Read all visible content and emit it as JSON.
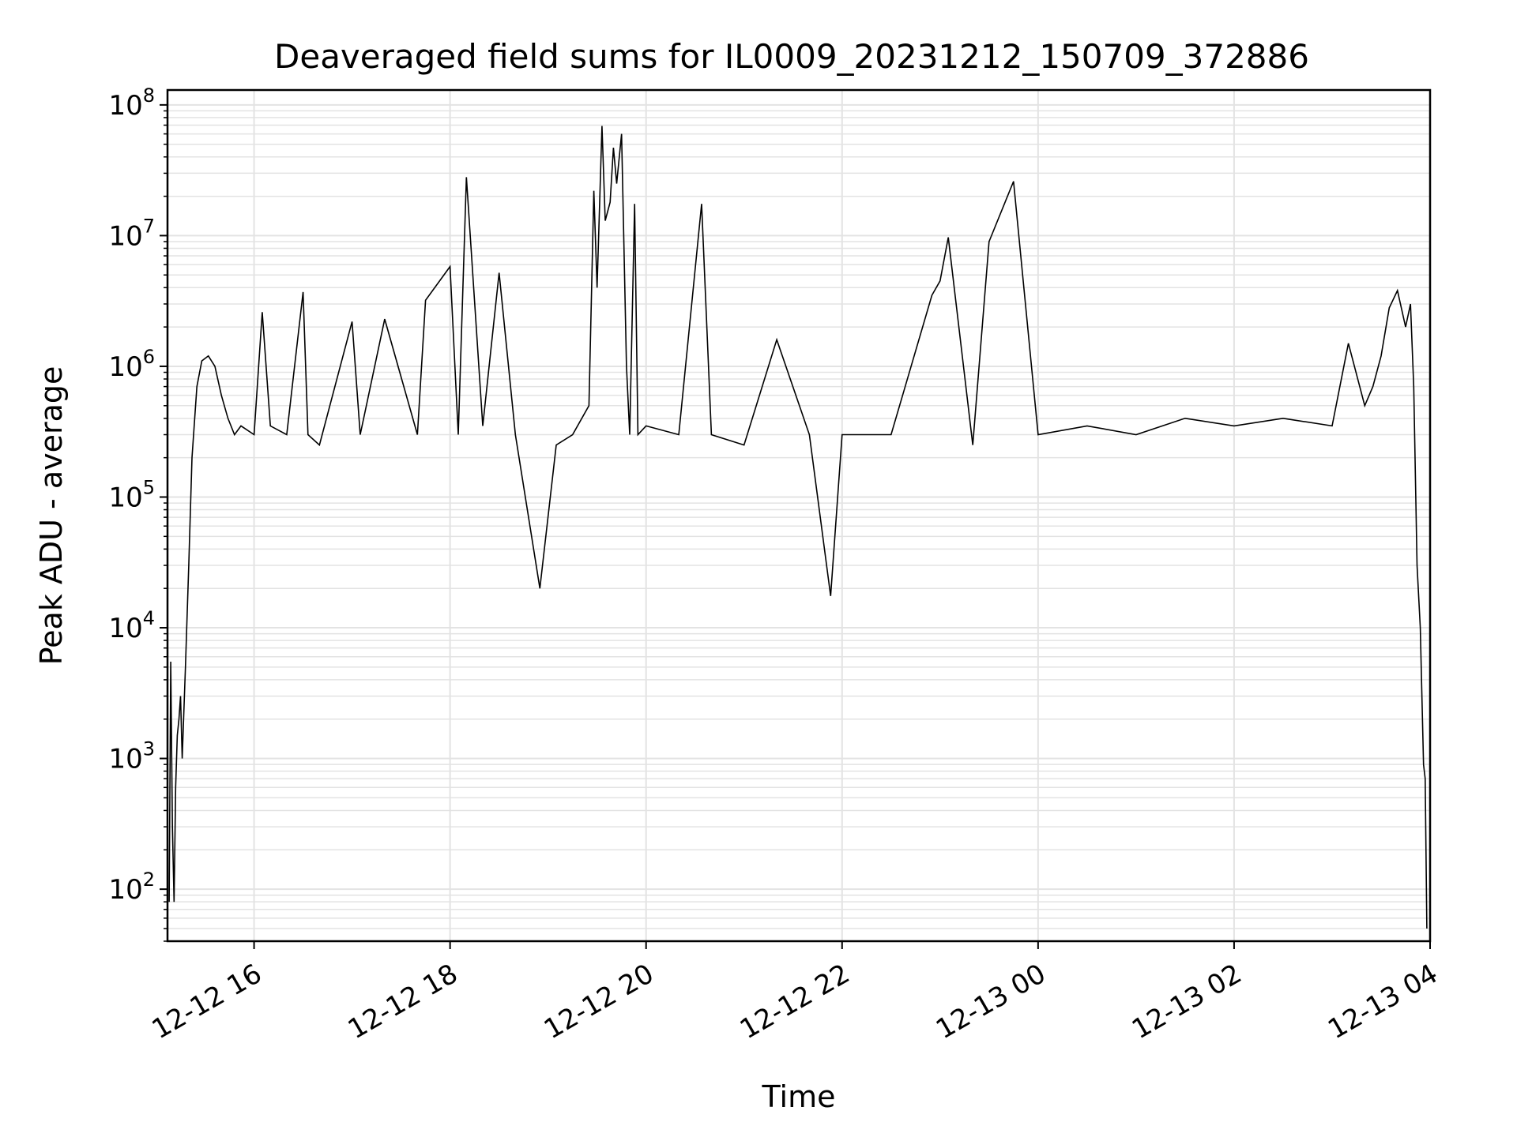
{
  "chart_data": {
    "type": "line",
    "title": "Deaveraged field sums for IL0009_20231212_150709_372886",
    "xlabel": "Time",
    "ylabel": "Peak ADU - average",
    "yscale": "log",
    "ylim": [
      40,
      130000000
    ],
    "xlim": [
      "2023-12-12 15:07",
      "2023-12-13 04:00"
    ],
    "grid": true,
    "legend": "none",
    "line_color": "#000000",
    "x_ticks": [
      {
        "t": "2023-12-12 16:00",
        "label": "12-12 16"
      },
      {
        "t": "2023-12-12 18:00",
        "label": "12-12 18"
      },
      {
        "t": "2023-12-12 20:00",
        "label": "12-12 20"
      },
      {
        "t": "2023-12-12 22:00",
        "label": "12-12 22"
      },
      {
        "t": "2023-12-13 00:00",
        "label": "12-13 00"
      },
      {
        "t": "2023-12-13 02:00",
        "label": "12-13 02"
      },
      {
        "t": "2023-12-13 04:00",
        "label": "12-13 04"
      }
    ],
    "y_ticks": [
      {
        "v": 100,
        "base": "10",
        "exp": "2"
      },
      {
        "v": 1000,
        "base": "10",
        "exp": "3"
      },
      {
        "v": 10000,
        "base": "10",
        "exp": "4"
      },
      {
        "v": 100000,
        "base": "10",
        "exp": "5"
      },
      {
        "v": 1000000,
        "base": "10",
        "exp": "6"
      },
      {
        "v": 10000000,
        "base": "10",
        "exp": "7"
      },
      {
        "v": 100000000,
        "base": "10",
        "exp": "8"
      }
    ],
    "series": [
      {
        "x": [
          "2023-12-12 15:08",
          "2023-12-12 15:09",
          "2023-12-12 15:10",
          "2023-12-12 15:11",
          "2023-12-12 15:12",
          "2023-12-12 15:13",
          "2023-12-12 15:14",
          "2023-12-12 15:15",
          "2023-12-12 15:16",
          "2023-12-12 15:18",
          "2023-12-12 15:20",
          "2023-12-12 15:22",
          "2023-12-12 15:25",
          "2023-12-12 15:28",
          "2023-12-12 15:32",
          "2023-12-12 15:36",
          "2023-12-12 15:40",
          "2023-12-12 15:44",
          "2023-12-12 15:48",
          "2023-12-12 15:52",
          "2023-12-12 16:00",
          "2023-12-12 16:05",
          "2023-12-12 16:10",
          "2023-12-12 16:20",
          "2023-12-12 16:30",
          "2023-12-12 16:33",
          "2023-12-12 16:40",
          "2023-12-12 17:00",
          "2023-12-12 17:05",
          "2023-12-12 17:20",
          "2023-12-12 17:40",
          "2023-12-12 17:45",
          "2023-12-12 18:00",
          "2023-12-12 18:05",
          "2023-12-12 18:10",
          "2023-12-12 18:20",
          "2023-12-12 18:30",
          "2023-12-12 18:40",
          "2023-12-12 18:55",
          "2023-12-12 19:05",
          "2023-12-12 19:15",
          "2023-12-12 19:25",
          "2023-12-12 19:28",
          "2023-12-12 19:30",
          "2023-12-12 19:33",
          "2023-12-12 19:35",
          "2023-12-12 19:38",
          "2023-12-12 19:40",
          "2023-12-12 19:42",
          "2023-12-12 19:45",
          "2023-12-12 19:48",
          "2023-12-12 19:50",
          "2023-12-12 19:53",
          "2023-12-12 19:55",
          "2023-12-12 20:00",
          "2023-12-12 20:20",
          "2023-12-12 20:34",
          "2023-12-12 20:40",
          "2023-12-12 21:00",
          "2023-12-12 21:20",
          "2023-12-12 21:40",
          "2023-12-12 21:53",
          "2023-12-12 22:00",
          "2023-12-12 22:30",
          "2023-12-12 22:55",
          "2023-12-12 23:00",
          "2023-12-12 23:05",
          "2023-12-12 23:20",
          "2023-12-12 23:30",
          "2023-12-12 23:45",
          "2023-12-13 00:00",
          "2023-12-13 00:30",
          "2023-12-13 01:00",
          "2023-12-13 01:30",
          "2023-12-13 02:00",
          "2023-12-13 02:30",
          "2023-12-13 03:00",
          "2023-12-13 03:10",
          "2023-12-13 03:20",
          "2023-12-13 03:25",
          "2023-12-13 03:30",
          "2023-12-13 03:35",
          "2023-12-13 03:40",
          "2023-12-13 03:45",
          "2023-12-13 03:48",
          "2023-12-13 03:50",
          "2023-12-13 03:52",
          "2023-12-13 03:54",
          "2023-12-13 03:56",
          "2023-12-13 03:57",
          "2023-12-13 03:58"
        ],
        "y": [
          80,
          5500,
          300,
          80,
          600,
          1500,
          2000,
          3000,
          1000,
          5000,
          30000,
          200000,
          700000,
          1100000,
          1200000,
          1000000,
          600000,
          400000,
          300000,
          350000,
          300000,
          2600000,
          350000,
          300000,
          3700000,
          300000,
          250000,
          2200000,
          300000,
          2300000,
          300000,
          3200000,
          5800000,
          300000,
          28000000,
          350000,
          5200000,
          300000,
          20000,
          250000,
          300000,
          500000,
          22000000,
          4000000,
          69000000,
          13000000,
          18000000,
          47000000,
          25000000,
          60000000,
          1000000,
          300000,
          17500000,
          300000,
          350000,
          300000,
          17500000,
          300000,
          250000,
          1600000,
          300000,
          17500,
          300000,
          300000,
          3500000,
          4500000,
          9700000,
          250000,
          9000000,
          26000000,
          300000,
          350000,
          300000,
          400000,
          350000,
          400000,
          350000,
          1500000,
          500000,
          700000,
          1200000,
          2800000,
          3800000,
          2000000,
          3000000,
          700000,
          30000,
          10000,
          900,
          700,
          50
        ]
      }
    ]
  }
}
